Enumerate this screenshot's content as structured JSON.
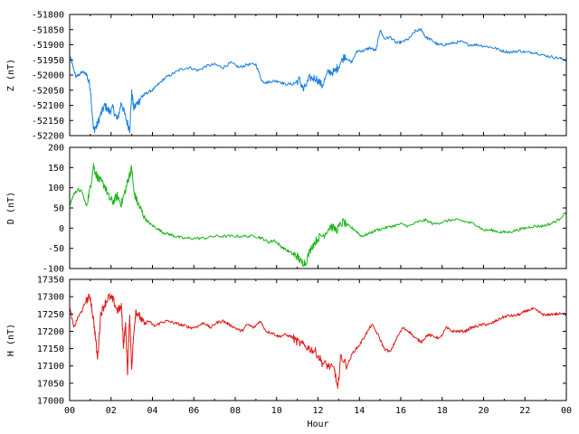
{
  "chart_data": [
    {
      "type": "line",
      "ylabel": "Z (nT)",
      "ylim": [
        -52200,
        -51800
      ],
      "yticks": [
        "-51800",
        "-51850",
        "-51900",
        "-51950",
        "-52000",
        "-52050",
        "-52100",
        "-52150",
        "-52200"
      ],
      "xlim": [
        0,
        24
      ],
      "xticks": [],
      "color": "#1a7fe0",
      "series": [
        {
          "x": [
            0,
            0.15,
            0.3,
            0.45,
            0.6,
            0.8,
            1.0,
            1.15,
            1.3,
            1.5,
            1.7,
            1.9,
            2.1,
            2.3,
            2.5,
            2.7,
            2.9,
            3.0,
            3.1,
            3.3,
            3.5,
            3.7,
            4.0,
            4.3,
            4.6,
            5.0,
            5.4,
            5.8,
            6.2,
            6.6,
            7.0,
            7.4,
            7.8,
            8.2,
            8.6,
            9.0,
            9.3,
            9.5,
            9.8,
            10.1,
            10.4,
            10.8,
            11.1,
            11.3,
            11.6,
            11.9,
            12.2,
            12.5,
            12.8,
            13.0,
            13.3,
            13.6,
            13.9,
            14.2,
            14.5,
            14.8,
            15.0,
            15.2,
            15.5,
            15.8,
            16.1,
            16.4,
            16.7,
            17.0,
            17.2,
            17.5,
            17.8,
            18.1,
            18.5,
            18.9,
            19.3,
            19.7,
            20.1,
            20.5,
            20.9,
            21.3,
            21.7,
            22.1,
            22.5,
            22.9,
            23.3,
            23.7,
            24.0
          ],
          "y": [
            -51935,
            -51970,
            -52005,
            -52000,
            -51990,
            -51995,
            -52040,
            -52180,
            -52170,
            -52130,
            -52100,
            -52120,
            -52110,
            -52150,
            -52090,
            -52140,
            -52180,
            -52060,
            -52110,
            -52090,
            -52070,
            -52060,
            -52050,
            -52030,
            -52010,
            -51995,
            -51980,
            -51975,
            -51985,
            -51970,
            -51965,
            -51975,
            -51960,
            -51975,
            -51965,
            -51965,
            -52020,
            -52025,
            -52020,
            -52020,
            -52030,
            -52030,
            -52015,
            -52050,
            -52010,
            -52010,
            -52035,
            -51990,
            -51990,
            -51970,
            -51935,
            -51960,
            -51920,
            -51920,
            -51910,
            -51920,
            -51850,
            -51880,
            -51875,
            -51895,
            -51890,
            -51880,
            -51855,
            -51850,
            -51875,
            -51885,
            -51900,
            -51900,
            -51895,
            -51890,
            -51900,
            -51900,
            -51905,
            -51910,
            -51920,
            -51925,
            -51920,
            -51925,
            -51925,
            -51935,
            -51940,
            -51945,
            -51950
          ]
        }
      ]
    },
    {
      "type": "line",
      "ylabel": "D (nT)",
      "ylim": [
        -100,
        200
      ],
      "yticks": [
        "200",
        "150",
        "100",
        "50",
        "0",
        "-50",
        "-100"
      ],
      "xlim": [
        0,
        24
      ],
      "xticks": [],
      "color": "#1ab41a",
      "series": [
        {
          "x": [
            0,
            0.2,
            0.4,
            0.6,
            0.8,
            1.0,
            1.15,
            1.3,
            1.5,
            1.7,
            1.9,
            2.1,
            2.3,
            2.5,
            2.7,
            2.85,
            3.0,
            3.1,
            3.3,
            3.5,
            3.7,
            3.9,
            4.2,
            4.5,
            4.8,
            5.1,
            5.5,
            6.0,
            6.5,
            7.0,
            7.5,
            8.0,
            8.5,
            9.0,
            9.3,
            9.6,
            9.9,
            10.2,
            10.5,
            10.8,
            11.0,
            11.2,
            11.4,
            11.7,
            12.0,
            12.3,
            12.6,
            12.9,
            13.2,
            13.5,
            13.8,
            14.1,
            14.4,
            14.8,
            15.2,
            15.6,
            16.0,
            16.4,
            16.8,
            17.2,
            17.6,
            18.0,
            18.4,
            18.8,
            19.2,
            19.6,
            20.0,
            20.4,
            20.8,
            21.2,
            21.6,
            22.0,
            22.4,
            22.8,
            23.2,
            23.6,
            24.0
          ],
          "y": [
            55,
            85,
            95,
            90,
            55,
            100,
            155,
            130,
            115,
            105,
            75,
            65,
            80,
            60,
            95,
            125,
            150,
            90,
            60,
            40,
            20,
            10,
            0,
            -10,
            -15,
            -20,
            -25,
            -25,
            -25,
            -20,
            -20,
            -20,
            -20,
            -20,
            -25,
            -35,
            -30,
            -45,
            -55,
            -65,
            -70,
            -85,
            -85,
            -45,
            -25,
            -15,
            5,
            -5,
            15,
            5,
            -5,
            -20,
            -15,
            -5,
            0,
            5,
            10,
            5,
            15,
            20,
            10,
            15,
            20,
            20,
            15,
            10,
            -5,
            -5,
            -10,
            -10,
            -5,
            0,
            5,
            5,
            10,
            20,
            40
          ]
        }
      ]
    },
    {
      "type": "line",
      "ylabel": "H (nT)",
      "ylim": [
        17000,
        17350
      ],
      "yticks": [
        "17350",
        "17300",
        "17250",
        "17200",
        "17150",
        "17100",
        "17050",
        "17000"
      ],
      "xlim": [
        0,
        24
      ],
      "xlabel": "Hour",
      "xticks": [
        "00",
        "02",
        "04",
        "06",
        "08",
        "10",
        "12",
        "14",
        "16",
        "18",
        "20",
        "22",
        "00"
      ],
      "color": "#e01a1a",
      "series": [
        {
          "x": [
            0,
            0.2,
            0.4,
            0.6,
            0.8,
            1.0,
            1.2,
            1.35,
            1.5,
            1.7,
            1.9,
            2.1,
            2.3,
            2.5,
            2.6,
            2.7,
            2.8,
            2.9,
            3.0,
            3.1,
            3.2,
            3.4,
            3.6,
            3.8,
            4.1,
            4.4,
            4.7,
            5.0,
            5.3,
            5.6,
            5.9,
            6.2,
            6.5,
            6.8,
            7.1,
            7.4,
            7.7,
            8.0,
            8.3,
            8.6,
            8.9,
            9.2,
            9.5,
            9.8,
            10.1,
            10.4,
            10.7,
            11.0,
            11.3,
            11.6,
            11.9,
            12.2,
            12.5,
            12.8,
            12.95,
            13.1,
            13.4,
            13.7,
            14.0,
            14.3,
            14.6,
            14.9,
            15.2,
            15.5,
            15.8,
            16.1,
            16.4,
            16.7,
            17.0,
            17.3,
            17.6,
            17.9,
            18.2,
            18.5,
            18.8,
            19.1,
            19.4,
            19.7,
            20.0,
            20.3,
            20.6,
            20.9,
            21.2,
            21.5,
            21.8,
            22.1,
            22.4,
            22.7,
            23.0,
            23.3,
            23.6,
            24.0
          ],
          "y": [
            17270,
            17210,
            17240,
            17260,
            17290,
            17300,
            17210,
            17120,
            17250,
            17280,
            17300,
            17290,
            17260,
            17270,
            17160,
            17220,
            17080,
            17250,
            17090,
            17200,
            17260,
            17240,
            17220,
            17230,
            17215,
            17225,
            17230,
            17225,
            17220,
            17215,
            17210,
            17215,
            17225,
            17210,
            17225,
            17230,
            17220,
            17210,
            17200,
            17220,
            17210,
            17230,
            17200,
            17195,
            17185,
            17190,
            17185,
            17170,
            17160,
            17150,
            17140,
            17110,
            17100,
            17090,
            17030,
            17130,
            17100,
            17140,
            17160,
            17190,
            17220,
            17190,
            17150,
            17140,
            17180,
            17210,
            17200,
            17180,
            17170,
            17190,
            17185,
            17180,
            17210,
            17200,
            17200,
            17200,
            17210,
            17215,
            17220,
            17220,
            17230,
            17240,
            17245,
            17245,
            17250,
            17260,
            17265,
            17255,
            17245,
            17250,
            17250,
            17250
          ]
        }
      ]
    }
  ]
}
